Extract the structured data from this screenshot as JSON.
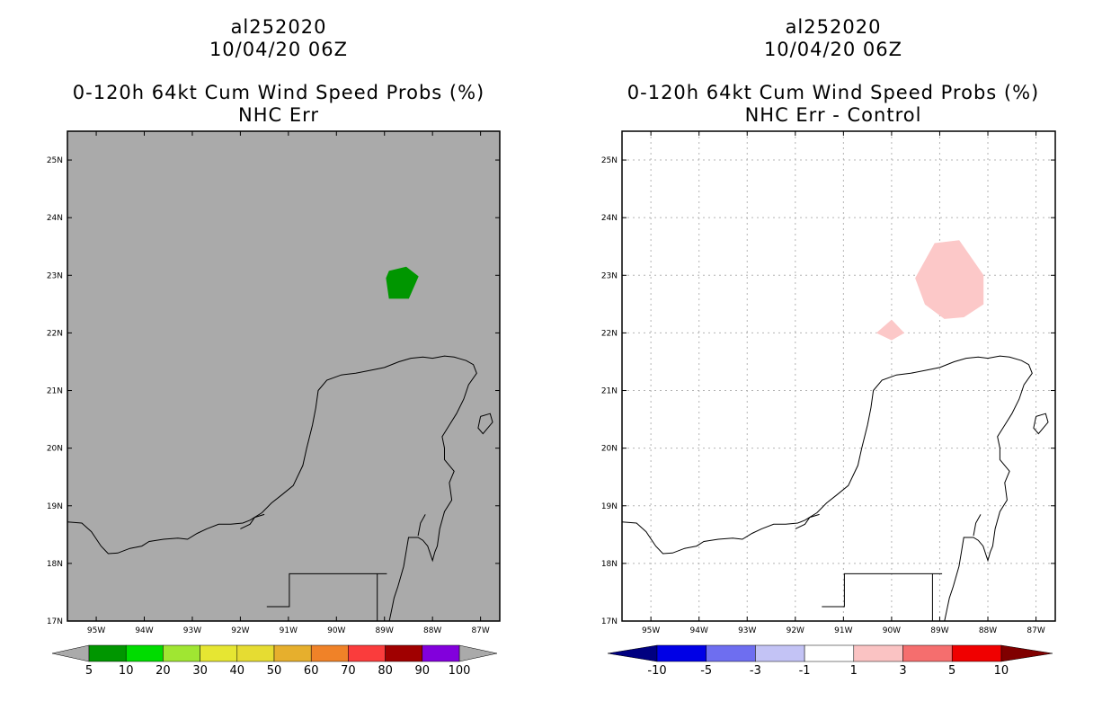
{
  "panels": [
    {
      "id": "left",
      "title_lines": [
        "al252020",
        "10/04/20 06Z",
        "0-120h 64kt Cum Wind Speed Probs (%)",
        "NHC Err"
      ],
      "background": "#aaaaaa",
      "grid": false,
      "colorbar": {
        "colors": [
          "#009600",
          "#00dc00",
          "#a0e632",
          "#e6e632",
          "#e6dc32",
          "#e6af2d",
          "#f08228",
          "#fa3c3c",
          "#a00000",
          "#8200dc"
        ],
        "end_colors": [
          "#aaaaaa",
          "#aaaaaa"
        ],
        "labels": [
          "5",
          "10",
          "20",
          "30",
          "40",
          "50",
          "60",
          "70",
          "80",
          "90",
          "100"
        ]
      },
      "shapes": [
        {
          "color": "#009600",
          "points": [
            [
              -88.96,
              22.95
            ],
            [
              -88.9,
              23.07
            ],
            [
              -88.55,
              23.14
            ],
            [
              -88.3,
              22.98
            ],
            [
              -88.5,
              22.6
            ],
            [
              -88.9,
              22.6
            ]
          ]
        }
      ]
    },
    {
      "id": "right",
      "title_lines": [
        "al252020",
        "10/04/20 06Z",
        "0-120h 64kt Cum Wind Speed Probs (%)",
        "NHC Err - Control"
      ],
      "background": "#ffffff",
      "grid": true,
      "colorbar": {
        "colors": [
          "#0000e6",
          "#6e6ef0",
          "#c3c3f5",
          "#ffffff",
          "#fac3c3",
          "#f56e6e",
          "#f00000"
        ],
        "end_colors": [
          "#000080",
          "#800000"
        ],
        "labels": [
          "-10",
          "-5",
          "-3",
          "-1",
          "1",
          "3",
          "5",
          "10"
        ]
      },
      "shapes": [
        {
          "color": "#fcc8c8",
          "points": [
            [
              -89.5,
              22.95
            ],
            [
              -89.1,
              23.55
            ],
            [
              -88.6,
              23.6
            ],
            [
              -88.1,
              23.0
            ],
            [
              -88.1,
              22.5
            ],
            [
              -88.5,
              22.28
            ],
            [
              -88.9,
              22.25
            ],
            [
              -89.3,
              22.5
            ]
          ]
        },
        {
          "color": "#fcc8c8",
          "points": [
            [
              -90.3,
              22.0
            ],
            [
              -90.0,
              22.22
            ],
            [
              -89.75,
              22.0
            ],
            [
              -90.0,
              21.88
            ]
          ]
        }
      ]
    }
  ],
  "map": {
    "lon_min": -95.6,
    "lon_max": -86.6,
    "lat_min": 17.0,
    "lat_max": 25.5,
    "lon_ticks": [
      {
        "value": -95,
        "label": "95W"
      },
      {
        "value": -94,
        "label": "94W"
      },
      {
        "value": -93,
        "label": "93W"
      },
      {
        "value": -92,
        "label": "92W"
      },
      {
        "value": -91,
        "label": "91W"
      },
      {
        "value": -90,
        "label": "90W"
      },
      {
        "value": -89,
        "label": "89W"
      },
      {
        "value": -88,
        "label": "88W"
      },
      {
        "value": -87,
        "label": "87W"
      }
    ],
    "lat_ticks": [
      {
        "value": 17,
        "label": "17N"
      },
      {
        "value": 18,
        "label": "18N"
      },
      {
        "value": 19,
        "label": "19N"
      },
      {
        "value": 20,
        "label": "20N"
      },
      {
        "value": 21,
        "label": "21N"
      },
      {
        "value": 22,
        "label": "22N"
      },
      {
        "value": 23,
        "label": "23N"
      },
      {
        "value": 24,
        "label": "24N"
      },
      {
        "value": 25,
        "label": "25N"
      }
    ],
    "coastline_main": [
      [
        -95.6,
        18.72
      ],
      [
        -95.3,
        18.7
      ],
      [
        -95.1,
        18.55
      ],
      [
        -94.9,
        18.3
      ],
      [
        -94.75,
        18.17
      ],
      [
        -94.55,
        18.18
      ],
      [
        -94.3,
        18.26
      ],
      [
        -94.05,
        18.3
      ],
      [
        -93.9,
        18.38
      ],
      [
        -93.6,
        18.42
      ],
      [
        -93.3,
        18.44
      ],
      [
        -93.1,
        18.42
      ],
      [
        -92.9,
        18.52
      ],
      [
        -92.7,
        18.6
      ],
      [
        -92.45,
        18.68
      ],
      [
        -92.2,
        18.68
      ],
      [
        -91.95,
        18.7
      ],
      [
        -91.8,
        18.75
      ],
      [
        -91.55,
        18.88
      ],
      [
        -91.35,
        19.05
      ],
      [
        -91.15,
        19.18
      ],
      [
        -90.9,
        19.35
      ],
      [
        -90.7,
        19.7
      ],
      [
        -90.62,
        20.0
      ],
      [
        -90.5,
        20.4
      ],
      [
        -90.43,
        20.7
      ],
      [
        -90.38,
        21.0
      ],
      [
        -90.2,
        21.18
      ],
      [
        -89.9,
        21.27
      ],
      [
        -89.6,
        21.3
      ],
      [
        -89.3,
        21.35
      ],
      [
        -89.0,
        21.4
      ],
      [
        -88.7,
        21.5
      ],
      [
        -88.45,
        21.56
      ],
      [
        -88.2,
        21.58
      ],
      [
        -88.0,
        21.56
      ],
      [
        -87.75,
        21.6
      ],
      [
        -87.55,
        21.58
      ],
      [
        -87.3,
        21.52
      ],
      [
        -87.15,
        21.45
      ],
      [
        -87.08,
        21.3
      ],
      [
        -87.25,
        21.1
      ],
      [
        -87.35,
        20.85
      ],
      [
        -87.5,
        20.6
      ],
      [
        -87.65,
        20.4
      ],
      [
        -87.8,
        20.2
      ],
      [
        -87.75,
        20.0
      ],
      [
        -87.75,
        19.8
      ],
      [
        -87.55,
        19.6
      ],
      [
        -87.65,
        19.4
      ],
      [
        -87.6,
        19.1
      ],
      [
        -87.75,
        18.9
      ],
      [
        -87.85,
        18.6
      ],
      [
        -87.9,
        18.3
      ],
      [
        -87.95,
        18.2
      ],
      [
        -88.0,
        18.05
      ],
      [
        -88.1,
        18.3
      ],
      [
        -88.2,
        18.4
      ],
      [
        -88.3,
        18.45
      ],
      [
        -88.5,
        18.45
      ],
      [
        -88.55,
        18.2
      ],
      [
        -88.6,
        17.95
      ],
      [
        -88.72,
        17.6
      ],
      [
        -88.8,
        17.4
      ],
      [
        -88.85,
        17.2
      ],
      [
        -88.9,
        17.0
      ]
    ],
    "cozumel": [
      [
        -87.0,
        20.55
      ],
      [
        -86.8,
        20.6
      ],
      [
        -86.75,
        20.45
      ],
      [
        -86.95,
        20.25
      ],
      [
        -87.05,
        20.35
      ],
      [
        -87.0,
        20.55
      ]
    ],
    "bay_inlet": [
      [
        -92.0,
        18.6
      ],
      [
        -91.8,
        18.68
      ],
      [
        -91.7,
        18.8
      ],
      [
        -91.5,
        18.85
      ]
    ],
    "chetumal_inlet": [
      [
        -88.3,
        18.48
      ],
      [
        -88.25,
        18.7
      ],
      [
        -88.15,
        18.85
      ]
    ],
    "borders": [
      [
        [
          -88.95,
          17.82
        ],
        [
          -90.98,
          17.82
        ],
        [
          -90.98,
          17.25
        ],
        [
          -91.45,
          17.25
        ]
      ],
      [
        [
          -89.15,
          17.82
        ],
        [
          -89.15,
          17.0
        ]
      ]
    ]
  }
}
